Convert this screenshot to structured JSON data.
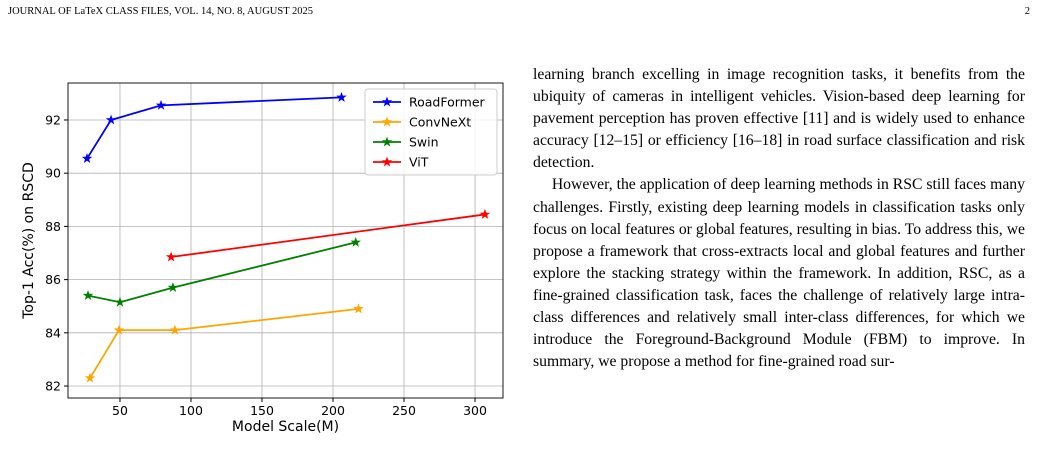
{
  "header": {
    "left": "JOURNAL OF LaTeX CLASS FILES, VOL. 14, NO. 8, AUGUST 2025",
    "page": "2"
  },
  "chart_data": {
    "type": "line",
    "x_label": "Model Scale(M)",
    "y_label": "Top-1 Acc(%) on RSCD",
    "xlim": [
      13.4,
      319.7
    ],
    "ylim": [
      81.55,
      93.39
    ],
    "xticks": [
      50,
      100,
      150,
      200,
      250,
      300
    ],
    "yticks": [
      82,
      84,
      86,
      88,
      90,
      92
    ],
    "grid": true,
    "legend": "upper right",
    "series": [
      {
        "name": "RoadFormer",
        "color": "#0000ff",
        "x": [
          26.8,
          43.7,
          78.9,
          206
        ],
        "values": [
          90.55,
          92.0,
          92.55,
          92.85
        ]
      },
      {
        "name": "ConvNeXt",
        "color": "#ffa500",
        "x": [
          28.9,
          49.3,
          88.7,
          218
        ],
        "values": [
          82.3,
          84.1,
          84.1,
          84.9
        ]
      },
      {
        "name": "Swin",
        "color": "#008000",
        "x": [
          27.5,
          50,
          87.3,
          216
        ],
        "values": [
          85.4,
          85.15,
          85.7,
          87.4
        ]
      },
      {
        "name": "ViT",
        "color": "#ff0000",
        "x": [
          86,
          307
        ],
        "values": [
          86.85,
          88.45
        ]
      }
    ]
  },
  "body": {
    "paragraphs": [
      "learning branch excelling in image recognition tasks, it benefits from the ubiquity of cameras in intelligent vehicles. Vision-based deep learning for pavement perception has proven effective [11] and is widely used to enhance accuracy [12–15] or efficiency [16–18] in road surface classification and risk detection.",
      "However, the application of deep learning methods in RSC still faces many challenges. Firstly, existing deep learning models in classification tasks only focus on local features or global features, resulting in bias. To address this, we propose a framework that cross-extracts local and global features and further explore the stacking strategy within the framework. In addition, RSC, as a fine-grained classification task, faces the challenge of relatively large intra-class differences and relatively small inter-class differences, for which we introduce the Foreground-Background Module (FBM) to improve. In summary, we propose a method for fine-grained road sur-"
    ]
  }
}
